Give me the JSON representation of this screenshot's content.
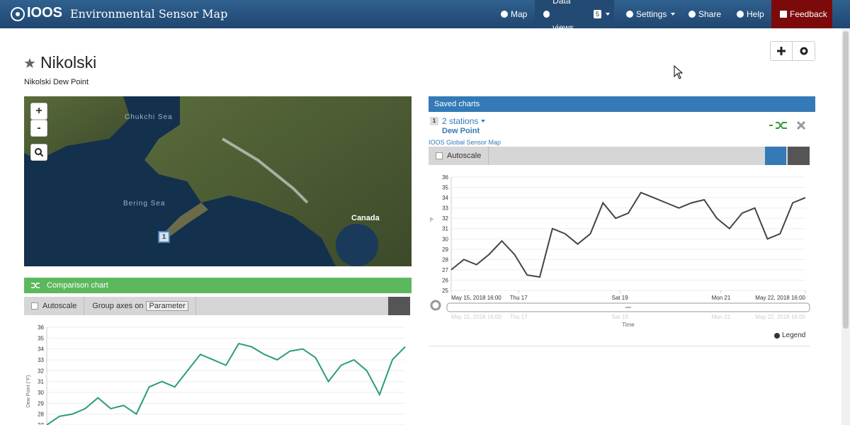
{
  "navbar": {
    "brand": "IOOS",
    "title": "Environmental Sensor Map",
    "items": [
      {
        "label": "Map"
      },
      {
        "label": "Data views",
        "badge": 5
      },
      {
        "label": "Settings"
      },
      {
        "label": "Share"
      },
      {
        "label": "Help"
      },
      {
        "label": "Feedback"
      }
    ]
  },
  "header": {
    "title": "Nikolski",
    "subtitle": "Nikolski Dew Point"
  },
  "map": {
    "zoom_in": "+",
    "zoom_out": "-",
    "labels": [
      "Chukchi Sea",
      "Bering Sea",
      "Canada"
    ],
    "marker": "1"
  },
  "comparison_chart": {
    "header": "Comparison chart",
    "autoscale": "Autoscale",
    "group_axes": "Group axes on",
    "group_select": "Parameter",
    "chart_data": {
      "type": "line",
      "y_label": "Dew Point (°F)",
      "ylim": [
        26.8,
        36
      ],
      "yticks": [
        27,
        28,
        29,
        30,
        31,
        32,
        33,
        34,
        35,
        36
      ],
      "x": [
        "2018-05-15T16:00",
        "2018-05-15T22:00",
        "2018-05-16T04:00",
        "2018-05-16T10:00",
        "2018-05-16T16:00",
        "2018-05-16T22:00",
        "2018-05-17T04:00",
        "2018-05-17T10:00",
        "2018-05-17T16:00",
        "2018-05-17T22:00",
        "2018-05-18T04:00",
        "2018-05-18T10:00",
        "2018-05-18T16:00",
        "2018-05-18T22:00",
        "2018-05-19T04:00",
        "2018-05-19T10:00",
        "2018-05-19T16:00",
        "2018-05-19T22:00",
        "2018-05-20T04:00",
        "2018-05-20T10:00",
        "2018-05-20T16:00",
        "2018-05-20T22:00",
        "2018-05-21T04:00",
        "2018-05-21T10:00",
        "2018-05-21T16:00",
        "2018-05-21T22:00",
        "2018-05-22T04:00",
        "2018-05-22T10:00",
        "2018-05-22T16:00"
      ],
      "series": [
        {
          "color": "#2a9d78",
          "values": [
            27,
            27.8,
            28,
            28.5,
            29.5,
            28.5,
            28.8,
            28,
            30.5,
            31,
            30.5,
            32,
            33.5,
            33,
            32.5,
            34.5,
            34.2,
            33.5,
            33,
            33.8,
            34,
            33.2,
            31,
            32.5,
            33,
            32,
            29.8,
            33,
            34.2
          ]
        }
      ]
    }
  },
  "saved_charts": {
    "header": "Saved charts",
    "index": "1",
    "stations": "2 stations",
    "parameter": "Dew Point",
    "source": "IOOS Global Sensor Map",
    "autoscale": "Autoscale",
    "legend": "Legend",
    "chart_data": {
      "type": "line",
      "y_label": "°F",
      "x_label": "Time",
      "ylim": [
        25,
        36
      ],
      "yticks": [
        25,
        26,
        27,
        28,
        29,
        30,
        31,
        32,
        33,
        34,
        35,
        36
      ],
      "xticks": [
        {
          "value": "2018-05-15T16:00",
          "label": "May 15, 2018 16:00"
        },
        {
          "value": "2018-05-17T00:00",
          "label": "Thu 17"
        },
        {
          "value": "2018-05-19T00:00",
          "label": "Sat 19"
        },
        {
          "value": "2018-05-21T00:00",
          "label": "Mon 21"
        },
        {
          "value": "2018-05-22T16:00",
          "label": "May 22, 2018 16:00"
        }
      ],
      "x": [
        "2018-05-15T16:00",
        "2018-05-15T22:00",
        "2018-05-16T04:00",
        "2018-05-16T10:00",
        "2018-05-16T16:00",
        "2018-05-16T22:00",
        "2018-05-17T04:00",
        "2018-05-17T10:00",
        "2018-05-17T16:00",
        "2018-05-17T22:00",
        "2018-05-18T04:00",
        "2018-05-18T10:00",
        "2018-05-18T16:00",
        "2018-05-18T22:00",
        "2018-05-19T04:00",
        "2018-05-19T10:00",
        "2018-05-19T16:00",
        "2018-05-19T22:00",
        "2018-05-20T04:00",
        "2018-05-20T10:00",
        "2018-05-20T16:00",
        "2018-05-20T22:00",
        "2018-05-21T04:00",
        "2018-05-21T10:00",
        "2018-05-21T16:00",
        "2018-05-21T22:00",
        "2018-05-22T04:00",
        "2018-05-22T10:00",
        "2018-05-22T16:00"
      ],
      "series": [
        {
          "color": "#444444",
          "values": [
            27,
            28,
            27.5,
            28.5,
            29.8,
            28.5,
            26.5,
            26.3,
            31,
            30.5,
            29.5,
            30.5,
            33.5,
            32,
            32.5,
            34.5,
            34,
            33.5,
            33,
            33.5,
            33.8,
            32,
            31,
            32.5,
            33,
            30,
            30.5,
            33.5,
            34
          ]
        }
      ]
    }
  }
}
